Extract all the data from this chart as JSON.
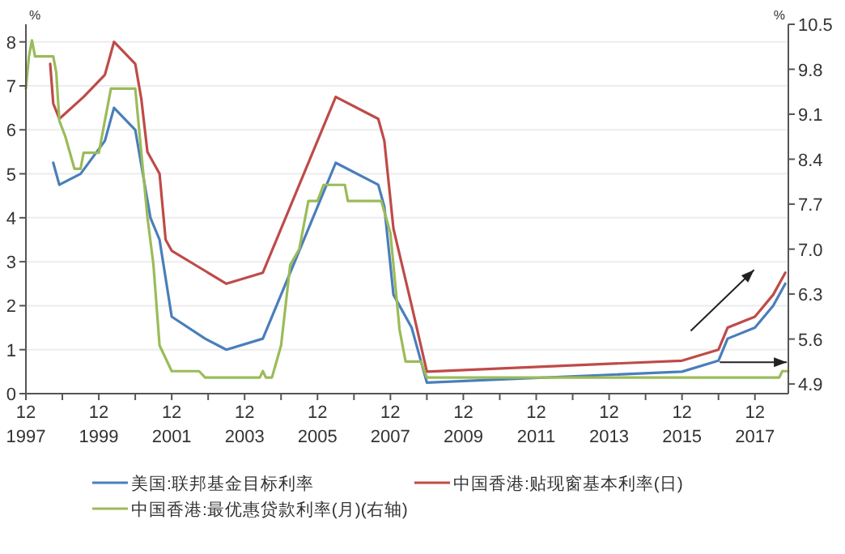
{
  "chart_data": {
    "type": "line",
    "ylabel": "%",
    "y2label": "%",
    "xlim": [
      "1997-12",
      "2018-11"
    ],
    "xticks": [
      {
        "value": "1997-12",
        "label": "12\n1997"
      },
      {
        "value": "1998-12",
        "label": null
      },
      {
        "value": "1999-12",
        "label": "12\n1999"
      },
      {
        "value": "2000-12",
        "label": null
      },
      {
        "value": "2001-12",
        "label": "12\n2001"
      },
      {
        "value": "2002-12",
        "label": null
      },
      {
        "value": "2003-12",
        "label": "12\n2003"
      },
      {
        "value": "2004-12",
        "label": null
      },
      {
        "value": "2005-12",
        "label": "12\n2005"
      },
      {
        "value": "2006-12",
        "label": null
      },
      {
        "value": "2007-12",
        "label": "12\n2007"
      },
      {
        "value": "2008-12",
        "label": null
      },
      {
        "value": "2009-12",
        "label": "12\n2009"
      },
      {
        "value": "2010-12",
        "label": null
      },
      {
        "value": "2011-12",
        "label": "12\n2011"
      },
      {
        "value": "2012-12",
        "label": null
      },
      {
        "value": "2013-12",
        "label": "12\n2013"
      },
      {
        "value": "2014-12",
        "label": null
      },
      {
        "value": "2015-12",
        "label": "12\n2015"
      },
      {
        "value": "2016-12",
        "label": null
      },
      {
        "value": "2017-12",
        "label": "12\n2017"
      }
    ],
    "ylim": [
      0,
      8.4
    ],
    "yticks": [
      0,
      1,
      2,
      3,
      4,
      5,
      6,
      7,
      8
    ],
    "y2lim": [
      4.75,
      10.5
    ],
    "y2ticks": [
      4.9,
      5.6,
      6.3,
      {
        "value": 7,
        "label": "7.0"
      },
      7.7,
      8.4,
      9.1,
      9.8,
      10.5
    ],
    "grid": "y",
    "legend": "bottom",
    "line_style": "solid",
    "marker": "none",
    "series": [
      {
        "name": "美国:联邦基金目标利率",
        "color": "#4a7ebb",
        "x": [
          "1998-09",
          "1998-11",
          "1999-06",
          "2000-02",
          "2000-05",
          "2000-12",
          "2001-05",
          "2001-08",
          "2001-12",
          "2002-11",
          "2003-06",
          "2004-06",
          "2005-06",
          "2006-06",
          "2007-08",
          "2007-10",
          "2008-01",
          "2008-07",
          "2008-12",
          "2015-12",
          "2016-12",
          "2017-03",
          "2017-12",
          "2018-06",
          "2018-10"
        ],
        "values": [
          5.25,
          4.75,
          5.0,
          5.75,
          6.5,
          6.0,
          4.0,
          3.5,
          1.75,
          1.25,
          1.0,
          1.25,
          3.25,
          5.25,
          4.75,
          4.25,
          2.25,
          1.5,
          0.25,
          0.5,
          0.75,
          1.25,
          1.5,
          2.0,
          2.5
        ]
      },
      {
        "name": "中国香港:贴现窗基本利率(日)",
        "color": "#be4b48",
        "x": [
          "1998-08",
          "1998-09",
          "1998-11",
          "1999-07",
          "2000-02",
          "2000-05",
          "2000-12",
          "2001-02",
          "2001-04",
          "2001-08",
          "2001-10",
          "2001-12",
          "2003-06",
          "2004-06",
          "2005-06",
          "2006-06",
          "2007-08",
          "2007-10",
          "2008-01",
          "2008-07",
          "2008-12",
          "2015-12",
          "2016-12",
          "2017-03",
          "2017-12",
          "2018-06",
          "2018-10"
        ],
        "values": [
          7.5,
          6.6,
          6.25,
          6.75,
          7.25,
          8.0,
          7.5,
          6.7,
          5.5,
          5.0,
          3.5,
          3.25,
          2.5,
          2.75,
          4.75,
          6.75,
          6.25,
          5.75,
          3.75,
          2.0,
          0.5,
          0.75,
          1.0,
          1.5,
          1.75,
          2.25,
          2.75
        ]
      },
      {
        "name": "中国香港:最优惠贷款利率(月)(右轴)",
        "color": "#9bbb59",
        "axis": "y2",
        "x": [
          "1997-12",
          "1998-01",
          "1998-02",
          "1998-03",
          "1998-09",
          "1998-10",
          "1998-11",
          "1999-01",
          "1999-04",
          "1999-06",
          "1999-07",
          "1999-12",
          "2000-04",
          "2000-12",
          "2001-04",
          "2001-06",
          "2001-08",
          "2001-12",
          "2002-09",
          "2002-11",
          "2004-05",
          "2004-06",
          "2004-07",
          "2004-09",
          "2004-12",
          "2005-03",
          "2005-06",
          "2005-09",
          "2005-12",
          "2006-02",
          "2006-09",
          "2006-10",
          "2007-09",
          "2007-12",
          "2008-03",
          "2008-05",
          "2008-10",
          "2008-12",
          "2018-08",
          "2018-09",
          "2018-11"
        ],
        "values": [
          9.5,
          10.0,
          10.25,
          10.0,
          10.0,
          9.75,
          9.0,
          8.75,
          8.25,
          8.25,
          8.5,
          8.5,
          9.5,
          9.5,
          7.5,
          6.75,
          5.5,
          5.1,
          5.1,
          5.0,
          5.0,
          5.1,
          5.0,
          5.0,
          5.5,
          6.75,
          7.0,
          7.75,
          7.75,
          8.0,
          8.0,
          7.75,
          7.75,
          7.25,
          5.75,
          5.25,
          5.25,
          5.0,
          5.0,
          5.1,
          5.1
        ]
      }
    ]
  }
}
